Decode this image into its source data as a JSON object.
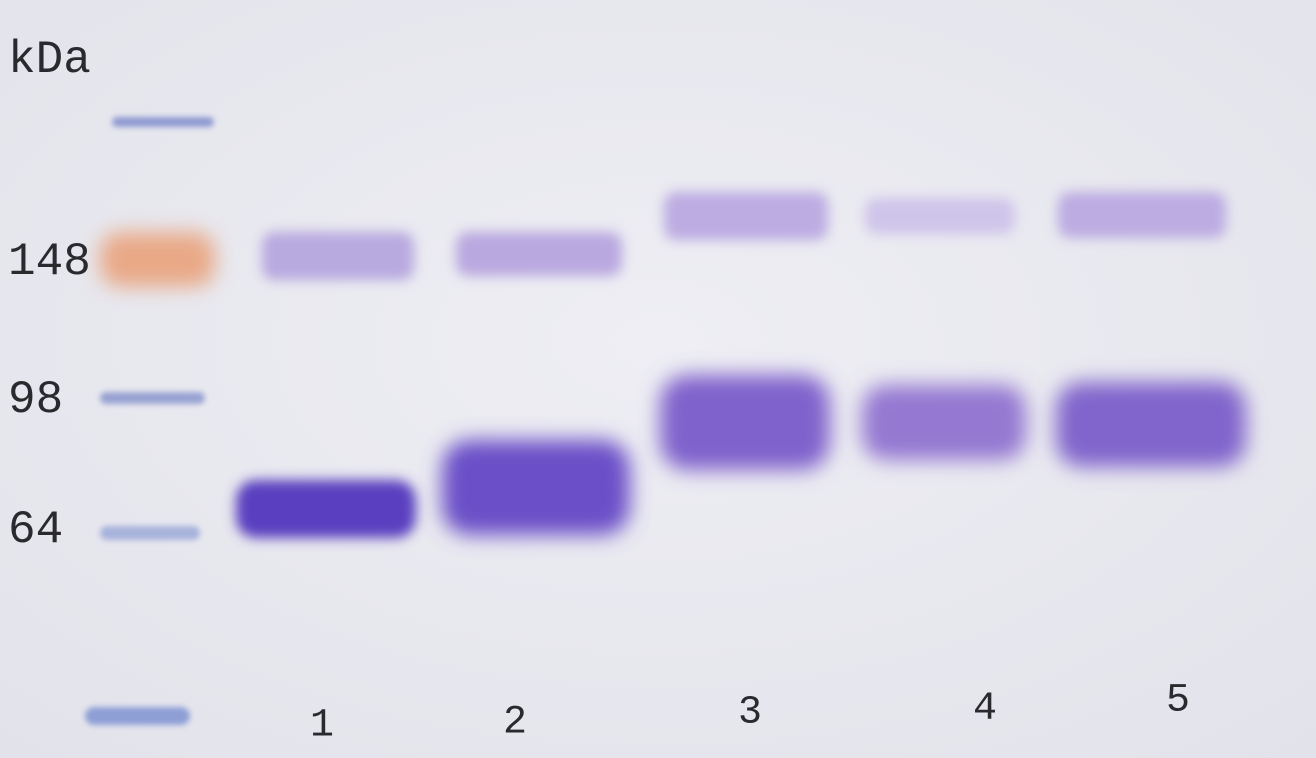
{
  "axis_label": "kDa",
  "markers": [
    "148",
    "98",
    "64"
  ],
  "lanes": [
    "1",
    "2",
    "3",
    "4",
    "5"
  ]
}
